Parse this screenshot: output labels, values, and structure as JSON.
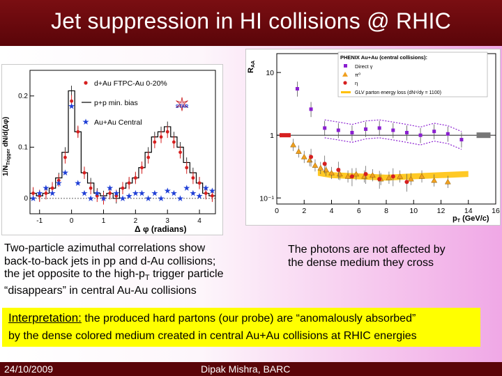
{
  "slide": {
    "title": "Jet suppression in HI collisions @ RHIC",
    "left_caption": {
      "line1": "Two-particle azimuthal correlations show",
      "line2": "back-to-back jets in pp and d-Au collisions;",
      "line3_a": "the jet opposite to the high-p",
      "line3_sub": "T",
      "line3_b": " trigger particle",
      "line4": "“disappears” in central Au-Au collisions"
    },
    "right_caption": {
      "line1": "The photons are not affected by",
      "line2": "the dense medium they cross"
    },
    "interpretation": {
      "heading": "Interpretation:",
      "line1_rest": " the produced hard partons (our probe) are “anomalously absorbed”",
      "line2": "by the dense colored medium created in central Au+Au collisions at RHIC energies"
    },
    "footer": {
      "date": "24/10/2009",
      "author": "Dipak Mishra, BARC"
    },
    "colors": {
      "title_bar": "#6e0a0f",
      "highlight": "#ffff00",
      "background_accent": "#f0a8e6"
    }
  },
  "chart_data": [
    {
      "type": "line",
      "chart": "star",
      "ylabel_main": "1/N",
      "ylabel_sub": "Trigger",
      "ylabel_tail": " dN/d(Δφ)",
      "xlabel": "Δ φ (radians)",
      "xlim": [
        -1.3,
        4.5
      ],
      "ylim": [
        -0.03,
        0.25
      ],
      "xticks": [
        -1,
        0,
        1,
        2,
        3,
        4
      ],
      "yticks": [
        0,
        0.1,
        0.2
      ],
      "ytick_labels": [
        "0",
        "0.1",
        "0.2"
      ],
      "legend": [
        "d+Au FTPC-Au 0-20%",
        "p+p min. bias",
        "Au+Au Central"
      ],
      "legend_star_label": "STAR",
      "series": [
        {
          "name": "p+p min. bias",
          "style": "histogram",
          "color": "#000000",
          "x": [
            -1.2,
            -1.0,
            -0.8,
            -0.6,
            -0.4,
            -0.2,
            0.0,
            0.2,
            0.4,
            0.6,
            0.8,
            1.0,
            1.2,
            1.4,
            1.6,
            1.8,
            2.0,
            2.2,
            2.4,
            2.6,
            2.8,
            3.0,
            3.2,
            3.4,
            3.6,
            3.8,
            4.0,
            4.2,
            4.4
          ],
          "y": [
            0.01,
            0.005,
            0.01,
            0.02,
            0.04,
            0.09,
            0.21,
            0.13,
            0.05,
            0.03,
            0.01,
            0.005,
            0.01,
            0.0,
            0.02,
            0.03,
            0.04,
            0.06,
            0.09,
            0.12,
            0.13,
            0.14,
            0.12,
            0.1,
            0.07,
            0.05,
            0.03,
            0.01,
            0.005
          ]
        },
        {
          "name": "d+Au FTPC-Au 0-20%",
          "style": "points",
          "color": "#d61f1f",
          "x": [
            -1.2,
            -1.0,
            -0.8,
            -0.6,
            -0.4,
            -0.2,
            0.0,
            0.2,
            0.4,
            0.6,
            0.8,
            1.0,
            1.2,
            1.4,
            1.6,
            1.8,
            2.0,
            2.2,
            2.4,
            2.6,
            2.8,
            3.0,
            3.2,
            3.4,
            3.6,
            3.8,
            4.0,
            4.2,
            4.4
          ],
          "y": [
            0.01,
            0.005,
            0.01,
            0.02,
            0.035,
            0.08,
            0.19,
            0.13,
            0.05,
            0.02,
            0.005,
            0.0,
            0.01,
            0.005,
            0.02,
            0.03,
            0.04,
            0.06,
            0.08,
            0.11,
            0.12,
            0.13,
            0.11,
            0.09,
            0.06,
            0.04,
            0.03,
            0.01,
            0.005
          ]
        },
        {
          "name": "Au+Au Central",
          "style": "points",
          "color": "#1f3fd6",
          "x": [
            -1.2,
            -1.0,
            -0.8,
            -0.6,
            -0.4,
            -0.2,
            0.0,
            0.2,
            0.4,
            0.6,
            0.8,
            1.0,
            1.2,
            1.4,
            1.6,
            1.8,
            2.0,
            2.2,
            2.4,
            2.6,
            2.8,
            3.0,
            3.2,
            3.4,
            3.6,
            3.8,
            4.0,
            4.2,
            4.4
          ],
          "y": [
            0.0,
            0.01,
            0.02,
            0.01,
            0.03,
            0.05,
            0.18,
            0.03,
            0.01,
            0.0,
            0.01,
            0.0,
            0.02,
            0.01,
            0.0,
            0.005,
            0.01,
            0.01,
            0.0,
            0.01,
            0.0,
            0.015,
            0.01,
            0.0,
            0.02,
            0.01,
            0.005,
            0.02,
            0.015
          ]
        }
      ]
    },
    {
      "type": "scatter",
      "chart": "phenix",
      "ylabel": "R_AA",
      "ylabel_main": "R",
      "ylabel_sub": "AA",
      "xlabel_main": "p",
      "xlabel_sub": "T",
      "xlabel_tail": " (GeV/c)",
      "log_y": true,
      "xlim": [
        0,
        16
      ],
      "ylim": [
        0.08,
        20
      ],
      "xticks": [
        0,
        2,
        4,
        6,
        8,
        10,
        12,
        14,
        16
      ],
      "yticks": [
        0.1,
        1,
        10
      ],
      "ytick_labels": [
        "10⁻¹",
        "1",
        "10"
      ],
      "legend_title": "PHENIX Au+Au (central collisions):",
      "legend": [
        "Direct γ",
        "π⁰",
        "η",
        "GLV parton energy loss (dN⁹/dy = 1100)"
      ],
      "series": [
        {
          "name": "Direct γ",
          "color": "#8a1fd0",
          "x": [
            1.5,
            2.5,
            3.5,
            4.5,
            5.5,
            6.5,
            7.5,
            8.5,
            9.5,
            10.5,
            11.5,
            12.5,
            13.5
          ],
          "y": [
            5.5,
            2.6,
            1.3,
            1.2,
            1.1,
            1.25,
            1.3,
            1.2,
            1.1,
            1.0,
            1.15,
            1.05,
            0.85
          ]
        },
        {
          "name": "π⁰",
          "color": "#f0a020",
          "x": [
            1.2,
            1.6,
            2.0,
            2.4,
            2.8,
            3.2,
            3.6,
            4.0,
            4.6,
            5.2,
            5.8,
            6.4,
            7.0,
            7.6,
            8.2,
            9.0,
            9.8,
            10.6,
            11.5,
            12.5
          ],
          "y": [
            0.7,
            0.55,
            0.45,
            0.4,
            0.33,
            0.3,
            0.28,
            0.25,
            0.24,
            0.22,
            0.24,
            0.22,
            0.23,
            0.2,
            0.21,
            0.22,
            0.2,
            0.22,
            0.19,
            0.18
          ]
        },
        {
          "name": "η",
          "color": "#d61f1f",
          "x": [
            2.5,
            3.5,
            4.5,
            5.5,
            6.5,
            7.5,
            8.5,
            9.5
          ],
          "y": [
            0.45,
            0.35,
            0.28,
            0.22,
            0.24,
            0.2,
            0.22,
            0.18
          ]
        },
        {
          "name": "GLV parton energy loss (dN⁹/dy = 1100)",
          "style": "band",
          "color": "#ffc000",
          "x": [
            3,
            4,
            6,
            8,
            10,
            12,
            14
          ],
          "y": [
            0.25,
            0.23,
            0.22,
            0.21,
            0.22,
            0.23,
            0.24
          ]
        }
      ]
    }
  ]
}
